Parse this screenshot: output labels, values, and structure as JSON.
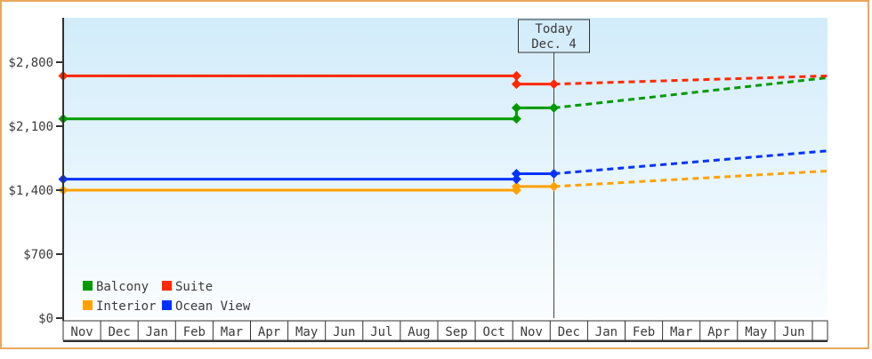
{
  "frame": {
    "border_color": "#e9a75c",
    "background": "#ffffff",
    "plot_bg_top": "#d2ecfa",
    "plot_bg_bottom": "#fafdff",
    "axis_color": "#333333",
    "text_color": "#3b3b3b"
  },
  "chart_data": {
    "type": "line",
    "title": "",
    "y_axis": {
      "tick_labels": [
        "$0",
        "$700",
        "$1,400",
        "$2,100",
        "$2,800"
      ],
      "tick_values": [
        0,
        700,
        1400,
        2100,
        2800
      ],
      "range": [
        0,
        3290
      ]
    },
    "x_axis": {
      "months": [
        "Nov",
        "Dec",
        "Jan",
        "Feb",
        "Mar",
        "Apr",
        "May",
        "Jun",
        "Jul",
        "Aug",
        "Sep",
        "Oct",
        "Nov",
        "Dec",
        "Jan",
        "Feb",
        "Mar",
        "Apr",
        "May",
        "Jun"
      ]
    },
    "today_marker": {
      "line1": "Today",
      "line2": "Dec. 4",
      "month_index": 13.1
    },
    "price_change_month_index": 12.1,
    "forecast_end_month_index": 20.4,
    "series": [
      {
        "name": "Balcony",
        "color": "#009a00",
        "solid": [
          [
            0,
            2180
          ],
          [
            12.1,
            2180
          ],
          [
            12.1,
            2300
          ],
          [
            13.1,
            2300
          ]
        ],
        "dashed": [
          [
            13.1,
            2300
          ],
          [
            20.4,
            2630
          ]
        ]
      },
      {
        "name": "Interior",
        "color": "#ffa200",
        "solid": [
          [
            0,
            1400
          ],
          [
            12.1,
            1400
          ],
          [
            12.1,
            1440
          ],
          [
            13.1,
            1440
          ]
        ],
        "dashed": [
          [
            13.1,
            1440
          ],
          [
            20.4,
            1610
          ]
        ]
      },
      {
        "name": "Ocean View",
        "color": "#0033ff",
        "solid": [
          [
            0,
            1520
          ],
          [
            12.1,
            1520
          ],
          [
            12.1,
            1580
          ],
          [
            13.1,
            1580
          ]
        ],
        "dashed": [
          [
            13.1,
            1580
          ],
          [
            20.4,
            1830
          ]
        ]
      },
      {
        "name": "Suite",
        "color": "#ff2800",
        "solid": [
          [
            0,
            2650
          ],
          [
            12.1,
            2650
          ],
          [
            12.1,
            2560
          ],
          [
            13.1,
            2560
          ]
        ],
        "dashed": [
          [
            13.1,
            2560
          ],
          [
            20.4,
            2650
          ]
        ]
      }
    ],
    "legend": {
      "rows": [
        [
          "Balcony",
          "Suite"
        ],
        [
          "Interior",
          "Ocean View"
        ]
      ]
    }
  }
}
